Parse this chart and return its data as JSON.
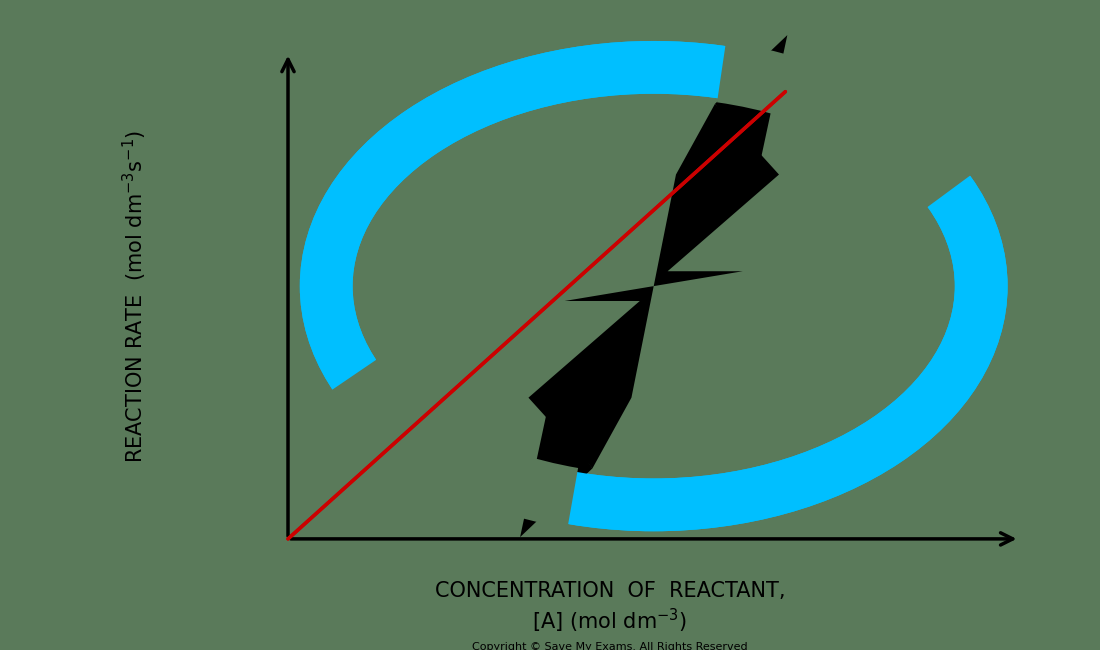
{
  "background_color": "#5a7a5a",
  "axis_color": "#000000",
  "line_color": "#cc0000",
  "bolt_color": "#000000",
  "circle_color": "#00bfff",
  "ylabel_text": "REACTION RATE  (mol dm$^{-3}$s$^{-1}$)",
  "xlabel_line1": "CONCENTRATION  OF  REACTANT,",
  "xlabel_line2": "[A] (mol dm$^{-3}$)",
  "copyright_text": "Copyright © Save My Exams. All Rights Reserved",
  "font_size_axis_label": 15,
  "font_size_copyright": 8
}
